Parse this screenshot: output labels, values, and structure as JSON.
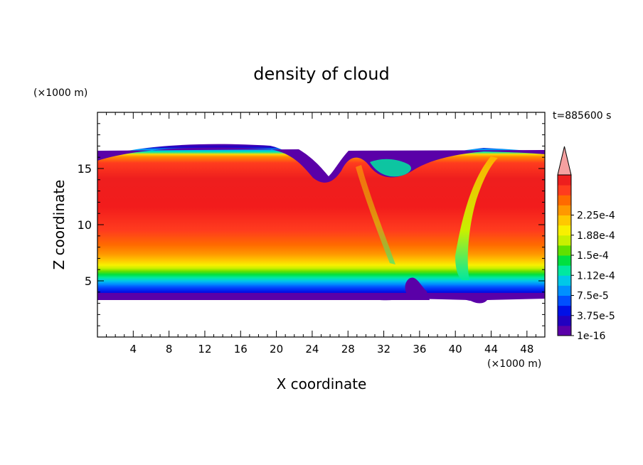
{
  "chart_data": {
    "type": "heatmap",
    "title": "density of cloud",
    "xlabel": "X coordinate",
    "ylabel": "Z coordinate",
    "x_unit": "(×1000 m)",
    "y_unit": "(×1000 m)",
    "time_label": "t=885600 s",
    "xlim": [
      0,
      50
    ],
    "ylim": [
      0,
      20
    ],
    "x_ticks": [
      4,
      8,
      12,
      16,
      20,
      24,
      28,
      32,
      36,
      40,
      44,
      48
    ],
    "y_ticks": [
      5,
      10,
      15
    ],
    "colorbar": {
      "labels": [
        "1e-16",
        "3.75e-5",
        "7.5e-5",
        "1.12e-4",
        "1.5e-4",
        "1.88e-4",
        "2.25e-4"
      ],
      "levels": [
        "#5a00a8",
        "#2200c0",
        "#0010e6",
        "#0050ff",
        "#0090ff",
        "#00c8e8",
        "#00e8a0",
        "#00e040",
        "#60e000",
        "#c8f000",
        "#f8f000",
        "#ffc800",
        "#ff9800",
        "#ff6a00",
        "#ff3c1e",
        "#ee1e1e"
      ],
      "overflow_color": "#f5a0a0"
    },
    "cloud_layer": {
      "base_km": 3.4,
      "top_km": 16.6,
      "core_density": 0.00023
    }
  }
}
